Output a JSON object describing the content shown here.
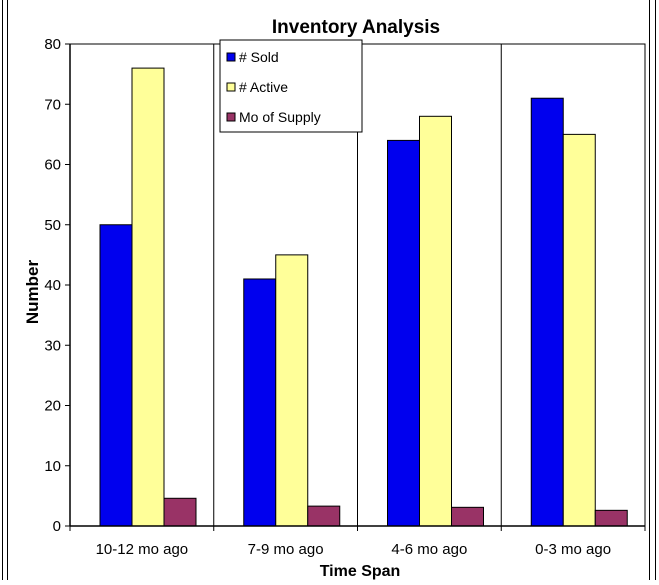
{
  "chart_data": {
    "type": "bar",
    "title": "Inventory Analysis",
    "xlabel": "Time Span",
    "ylabel": "Number",
    "categories": [
      "10-12 mo ago",
      "7-9 mo ago",
      "4-6 mo ago",
      "0-3 mo ago"
    ],
    "series": [
      {
        "name": "# Sold",
        "color": "#0000ee",
        "values": [
          50,
          41,
          64,
          71
        ]
      },
      {
        "name": "# Active",
        "color": "#ffff99",
        "values": [
          76,
          45,
          68,
          65
        ]
      },
      {
        "name": "Mo of Supply",
        "color": "#993366",
        "values": [
          4.6,
          3.3,
          3.1,
          2.6
        ]
      }
    ],
    "ylim": [
      0,
      80
    ],
    "yticks": [
      0,
      10,
      20,
      30,
      40,
      50,
      60,
      70,
      80
    ],
    "grid": "vertical category separators",
    "legend_position": "top-center"
  }
}
